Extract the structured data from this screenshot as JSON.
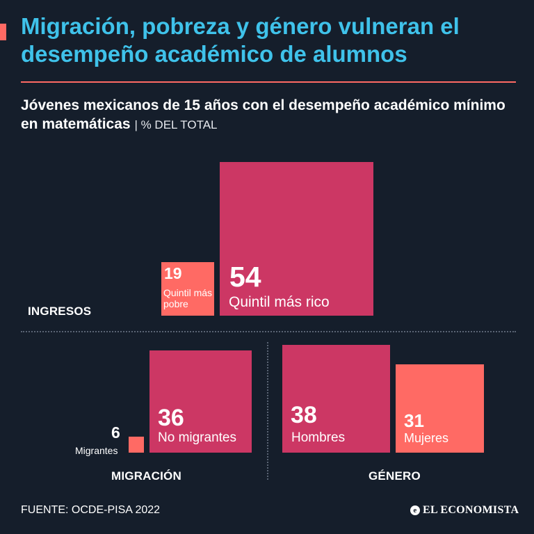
{
  "title": "Migración, pobreza y género vulneran el desempeño académico de alumnos",
  "subtitle": "Jóvenes mexicanos de 15 años con el desempeño académico mínimo en matemáticas",
  "unit": "| % DEL TOTAL",
  "colors": {
    "background": "#151e2b",
    "title": "#3fc2ea",
    "accent": "#ff6a64",
    "primary_box": "#cc3764",
    "secondary_box": "#ff6a64"
  },
  "chart_data": [
    {
      "type": "proportional-area",
      "group": "INGRESOS",
      "categories": [
        "Quintil más pobre",
        "Quintil más rico"
      ],
      "values": [
        19,
        54
      ],
      "value_labels": [
        "19",
        "54"
      ]
    },
    {
      "type": "proportional-area",
      "group": "MIGRACIÓN",
      "categories": [
        "Migrantes",
        "No migrantes"
      ],
      "values": [
        6,
        36
      ],
      "value_labels": [
        "6",
        "36"
      ]
    },
    {
      "type": "proportional-area",
      "group": "GÉNERO",
      "categories": [
        "Hombres",
        "Mujeres"
      ],
      "values": [
        38,
        31
      ],
      "value_labels": [
        "38",
        "31"
      ]
    }
  ],
  "footer": {
    "source": "FUENTE: OCDE-PISA 2022",
    "logo_mark": "e",
    "logo_text": "EL ECONOMISTA"
  }
}
